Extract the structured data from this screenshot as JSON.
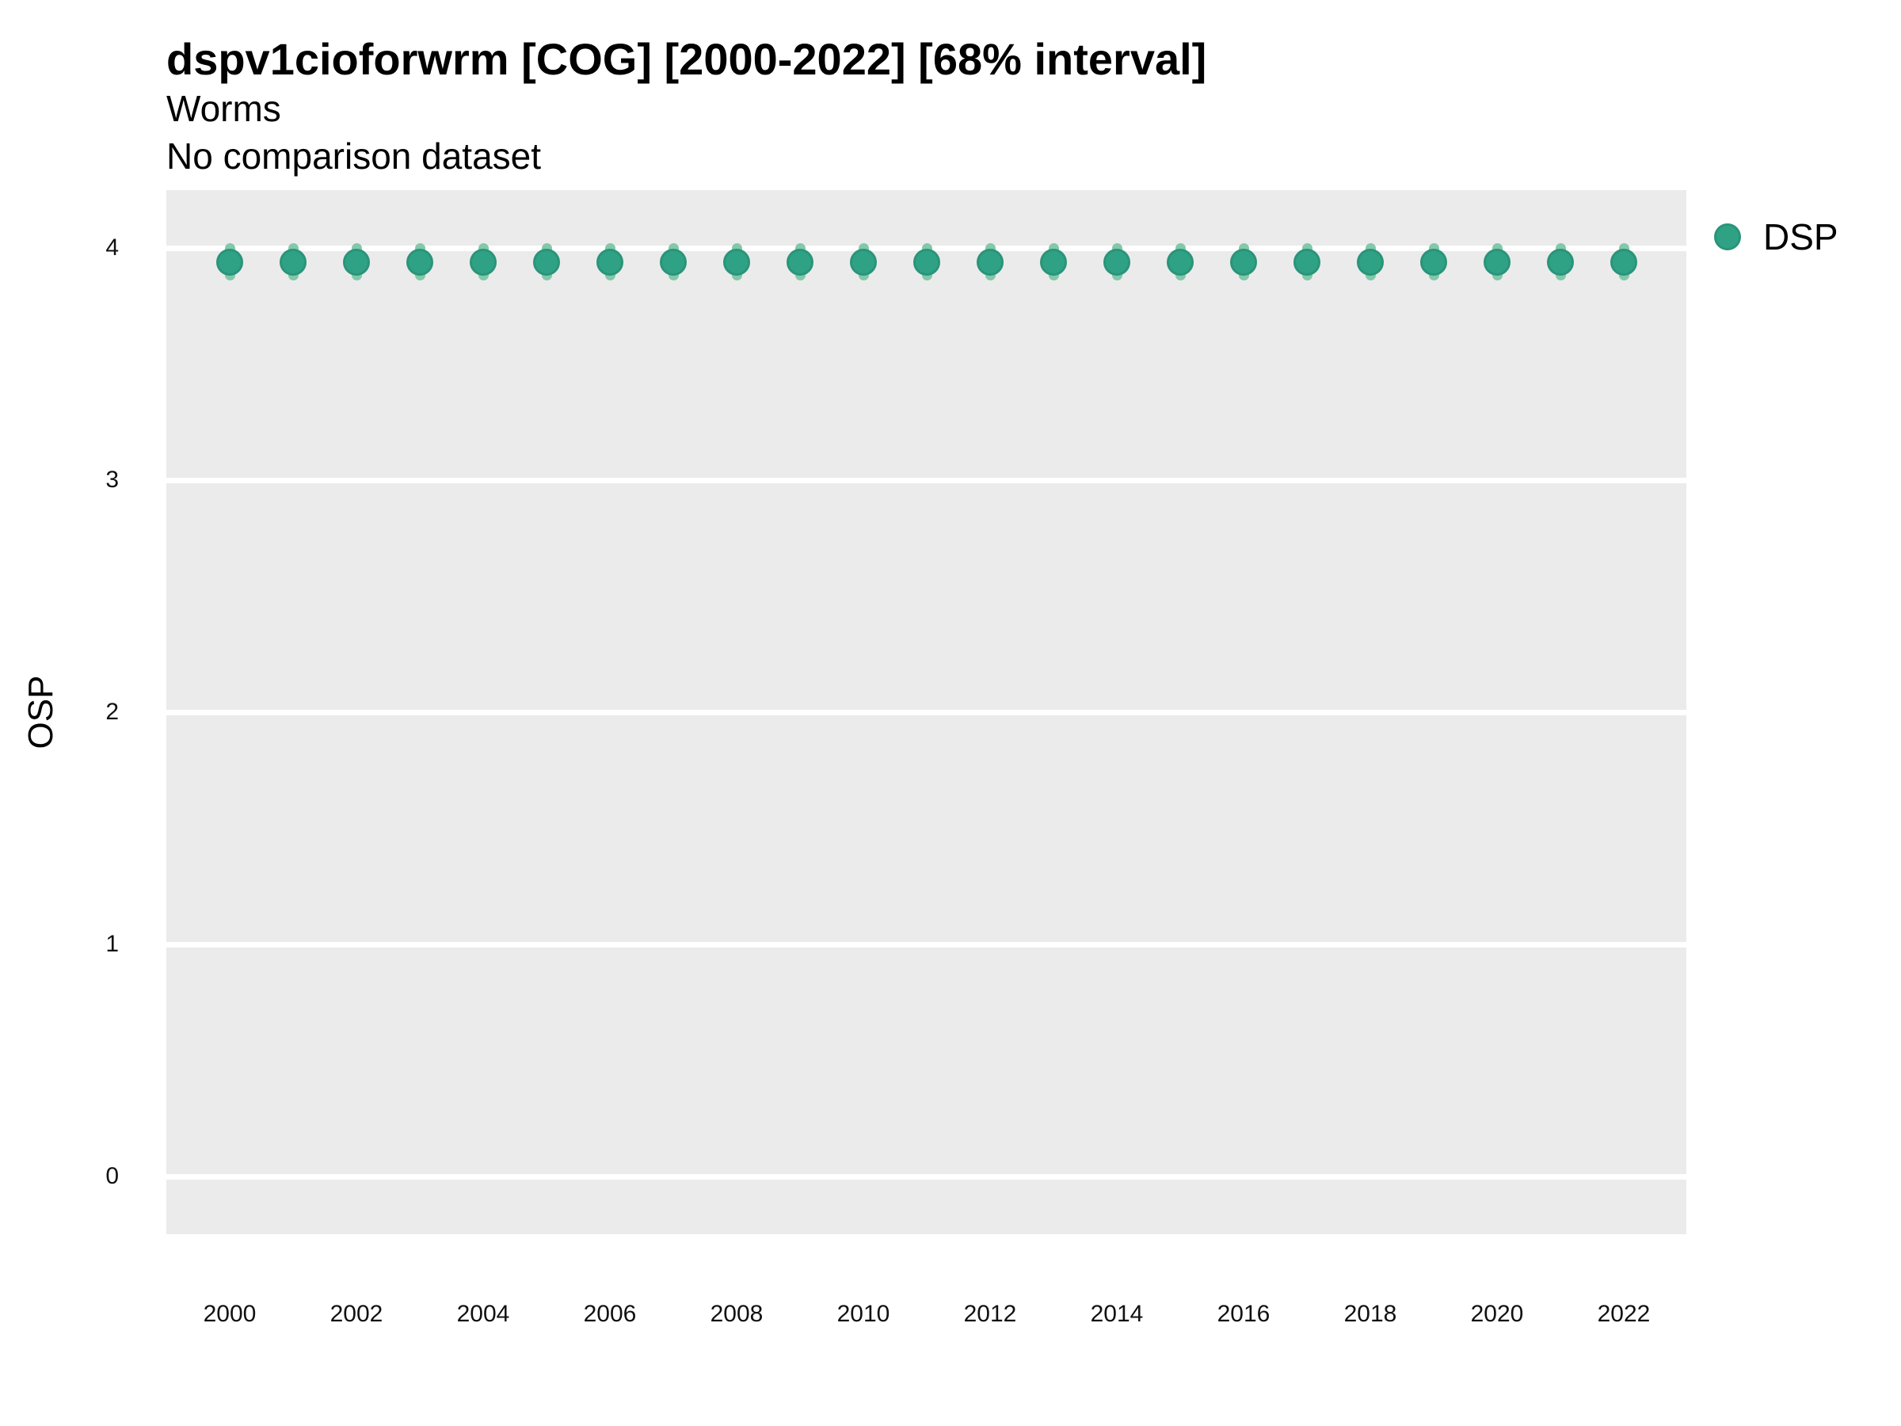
{
  "title": "dspv1cioforwrm [COG] [2000-2022] [68% interval]",
  "subtitle": "Worms",
  "subtitle2": "No comparison dataset",
  "y_axis_title": "OSP",
  "legend": {
    "label": "DSP",
    "marker": "circle-icon"
  },
  "colors": {
    "point_fill": "#2FA286",
    "point_border": "#2A9479",
    "interval_bar": "#82C8AA",
    "panel_background": "#EBEBEB",
    "gridline": "#FFFFFF",
    "text": "#000000"
  },
  "chart_data": {
    "type": "scatter",
    "title": "dspv1cioforwrm [COG] [2000-2022] [68% interval]",
    "subtitle": "Worms",
    "annotation": "No comparison dataset",
    "xlabel": "",
    "ylabel": "OSP",
    "interval": "68%",
    "x": [
      2000,
      2001,
      2002,
      2003,
      2004,
      2005,
      2006,
      2007,
      2008,
      2009,
      2010,
      2011,
      2012,
      2013,
      2014,
      2015,
      2016,
      2017,
      2018,
      2019,
      2020,
      2021,
      2022
    ],
    "series": [
      {
        "name": "DSP",
        "values": [
          3.94,
          3.94,
          3.94,
          3.94,
          3.94,
          3.94,
          3.94,
          3.94,
          3.94,
          3.94,
          3.94,
          3.94,
          3.94,
          3.94,
          3.94,
          3.94,
          3.94,
          3.94,
          3.94,
          3.94,
          3.94,
          3.94,
          3.94
        ],
        "interval_low": [
          3.86,
          3.86,
          3.86,
          3.86,
          3.86,
          3.86,
          3.86,
          3.86,
          3.86,
          3.86,
          3.86,
          3.86,
          3.86,
          3.86,
          3.86,
          3.86,
          3.86,
          3.86,
          3.86,
          3.86,
          3.86,
          3.86,
          3.86
        ],
        "interval_high": [
          4.02,
          4.02,
          4.02,
          4.02,
          4.02,
          4.02,
          4.02,
          4.02,
          4.02,
          4.02,
          4.02,
          4.02,
          4.02,
          4.02,
          4.02,
          4.02,
          4.02,
          4.02,
          4.02,
          4.02,
          4.02,
          4.02,
          4.02
        ]
      }
    ],
    "ylim": [
      -0.25,
      4.25
    ],
    "y_ticks": [
      0,
      1,
      2,
      3,
      4
    ],
    "x_ticks": [
      2000,
      2002,
      2004,
      2006,
      2008,
      2010,
      2012,
      2014,
      2016,
      2018,
      2020,
      2022
    ],
    "grid": "major-horizontal-only",
    "legend_position": "right-top",
    "legend_entries": [
      "DSP"
    ]
  }
}
